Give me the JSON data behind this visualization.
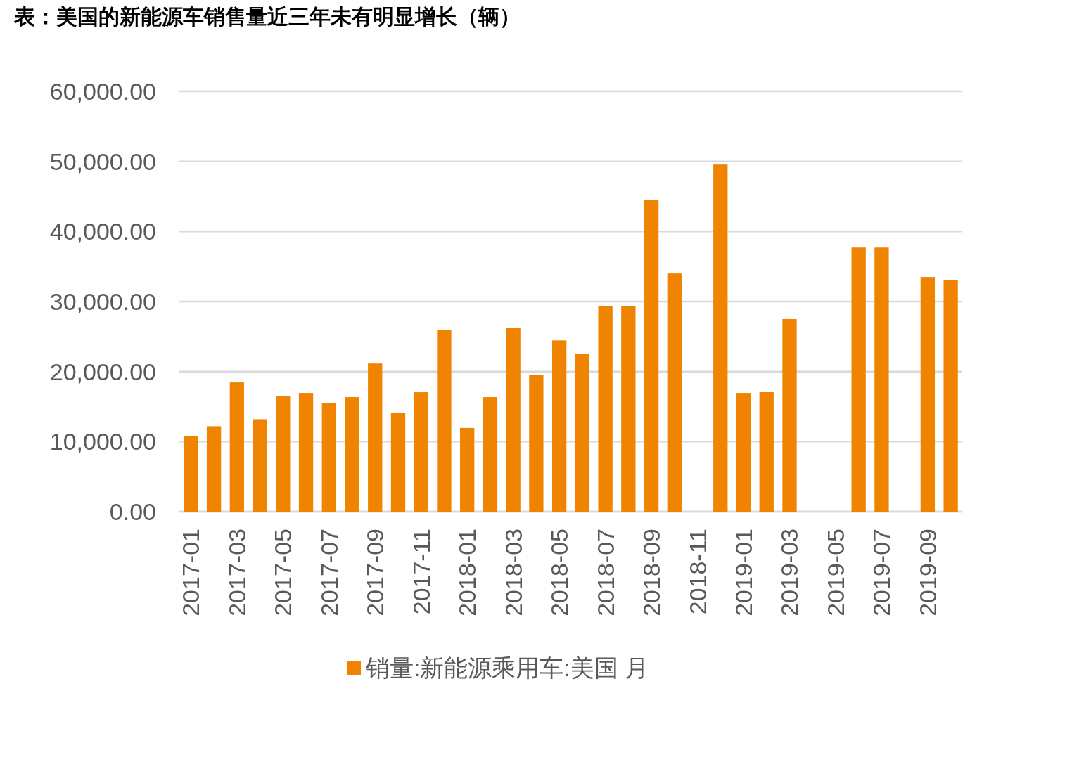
{
  "chart_data": {
    "type": "bar",
    "title": "表：美国的新能源车销售量近三年未有明显增长（辆）",
    "categories": [
      "2017-01",
      null,
      "2017-03",
      null,
      "2017-05",
      null,
      "2017-07",
      null,
      "2017-09",
      null,
      "2017-11",
      null,
      "2018-01",
      null,
      "2018-03",
      null,
      "2018-05",
      null,
      "2018-07",
      null,
      "2018-09",
      null,
      "2018-11",
      null,
      "2019-01",
      null,
      "2019-03",
      null,
      "2019-05",
      null,
      "2019-07",
      null,
      "2019-09",
      null
    ],
    "series": [
      {
        "name": "销量:新能源乘用车:美国 月",
        "color": "#f08300",
        "values": [
          10800,
          12200,
          18450,
          13200,
          16450,
          16950,
          15450,
          16350,
          21150,
          14150,
          17050,
          25950,
          11950,
          16350,
          26250,
          19550,
          24450,
          22550,
          29400,
          29400,
          44450,
          34000,
          null,
          49550,
          16950,
          17150,
          27500,
          null,
          null,
          37700,
          37700,
          null,
          33500,
          33100
        ]
      }
    ],
    "ylim": [
      0,
      60000
    ],
    "yticks": [
      {
        "value": 0,
        "label": "0.00"
      },
      {
        "value": 10000,
        "label": "10,000.00"
      },
      {
        "value": 20000,
        "label": "20,000.00"
      },
      {
        "value": 30000,
        "label": "30,000.00"
      },
      {
        "value": 40000,
        "label": "40,000.00"
      },
      {
        "value": 50000,
        "label": "50,000.00"
      },
      {
        "value": 60000,
        "label": "60,000.00"
      }
    ],
    "grid": "y",
    "legend": "bottom"
  }
}
